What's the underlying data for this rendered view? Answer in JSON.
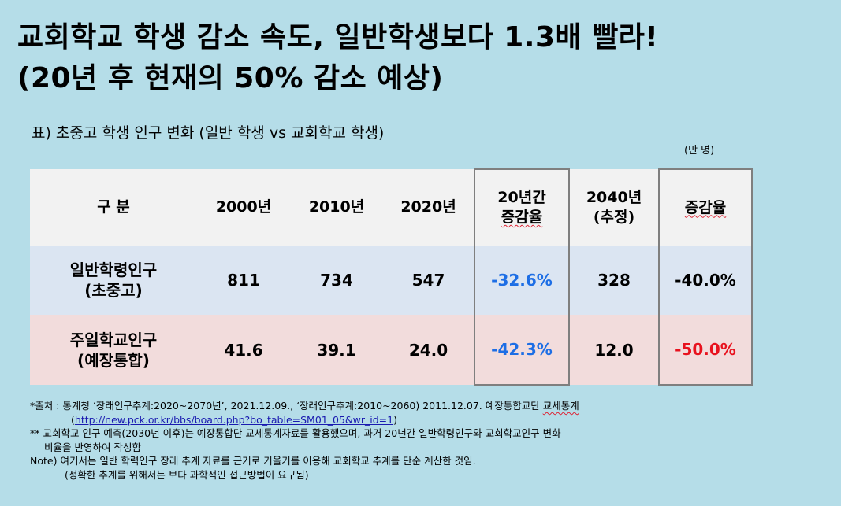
{
  "title": {
    "line1": "교회학교 학생 감소 속도, 일반학생보다 1.3배 빨라!",
    "line2": "(20년 후 현재의 50% 감소 예상)"
  },
  "caption": "표) 초중고 학생 인구 변화 (일반 학생 vs 교회학교 학생)",
  "unit": "(만 명)",
  "table": {
    "headers": {
      "category": "구 분",
      "y2000": "2000년",
      "y2010": "2010년",
      "y2020": "2020년",
      "change20_line1": "20년간",
      "change20_line2": "증감율",
      "y2040_line1": "2040년",
      "y2040_line2": "(추정)",
      "change": "증감율"
    },
    "rows": [
      {
        "label_line1": "일반학령인구",
        "label_line2": "(초중고)",
        "y2000": "811",
        "y2010": "734",
        "y2020": "547",
        "change20": "-32.6%",
        "y2040": "328",
        "change": "-40.0%"
      },
      {
        "label_line1": "주일학교인구",
        "label_line2": "(예장통합)",
        "y2000": "41.6",
        "y2010": "39.1",
        "y2020": "24.0",
        "change20": "-42.3%",
        "y2040": "12.0",
        "change": "-50.0%"
      }
    ]
  },
  "notes": {
    "source_text": "*출처 : 통계청 ‘장래인구추계:2020~2070년’, 2021.12.09., ‘장래인구추계:2010~2060) 2011.12.07. 예장통합교단 ",
    "source_underlined": "교세통계",
    "source_link_open": "(",
    "source_link": "http://new.pck.or.kr/bbs/board.php?bo_table=SM01_05&wr_id=1",
    "source_link_close": ")",
    "note2_line1": "** 교회학교 인구 예측(2030년 이후)는 예장통합단 교세통계자료를 활용했으며, 과거 20년간 일반학령인구와 교회학교인구 변화",
    "note2_line2": "비율을 반영하여 작성함",
    "note3_line1": "Note) 여기서는 일반 학력인구 장래 추계 자료를 근거로 기울기를 이용해 교회학교 추계를 단순 계산한 것임.",
    "note3_line2": "(정확한 추계를 위해서는 보다 과학적인 접근방법이 요구됨)"
  },
  "colors": {
    "background": "#b5dde8",
    "header_row": "#f2f2f2",
    "row_general": "#dbe5f2",
    "row_church": "#f2dcdc",
    "blue_value": "#1d6ee5",
    "red_value": "#e8121e"
  }
}
